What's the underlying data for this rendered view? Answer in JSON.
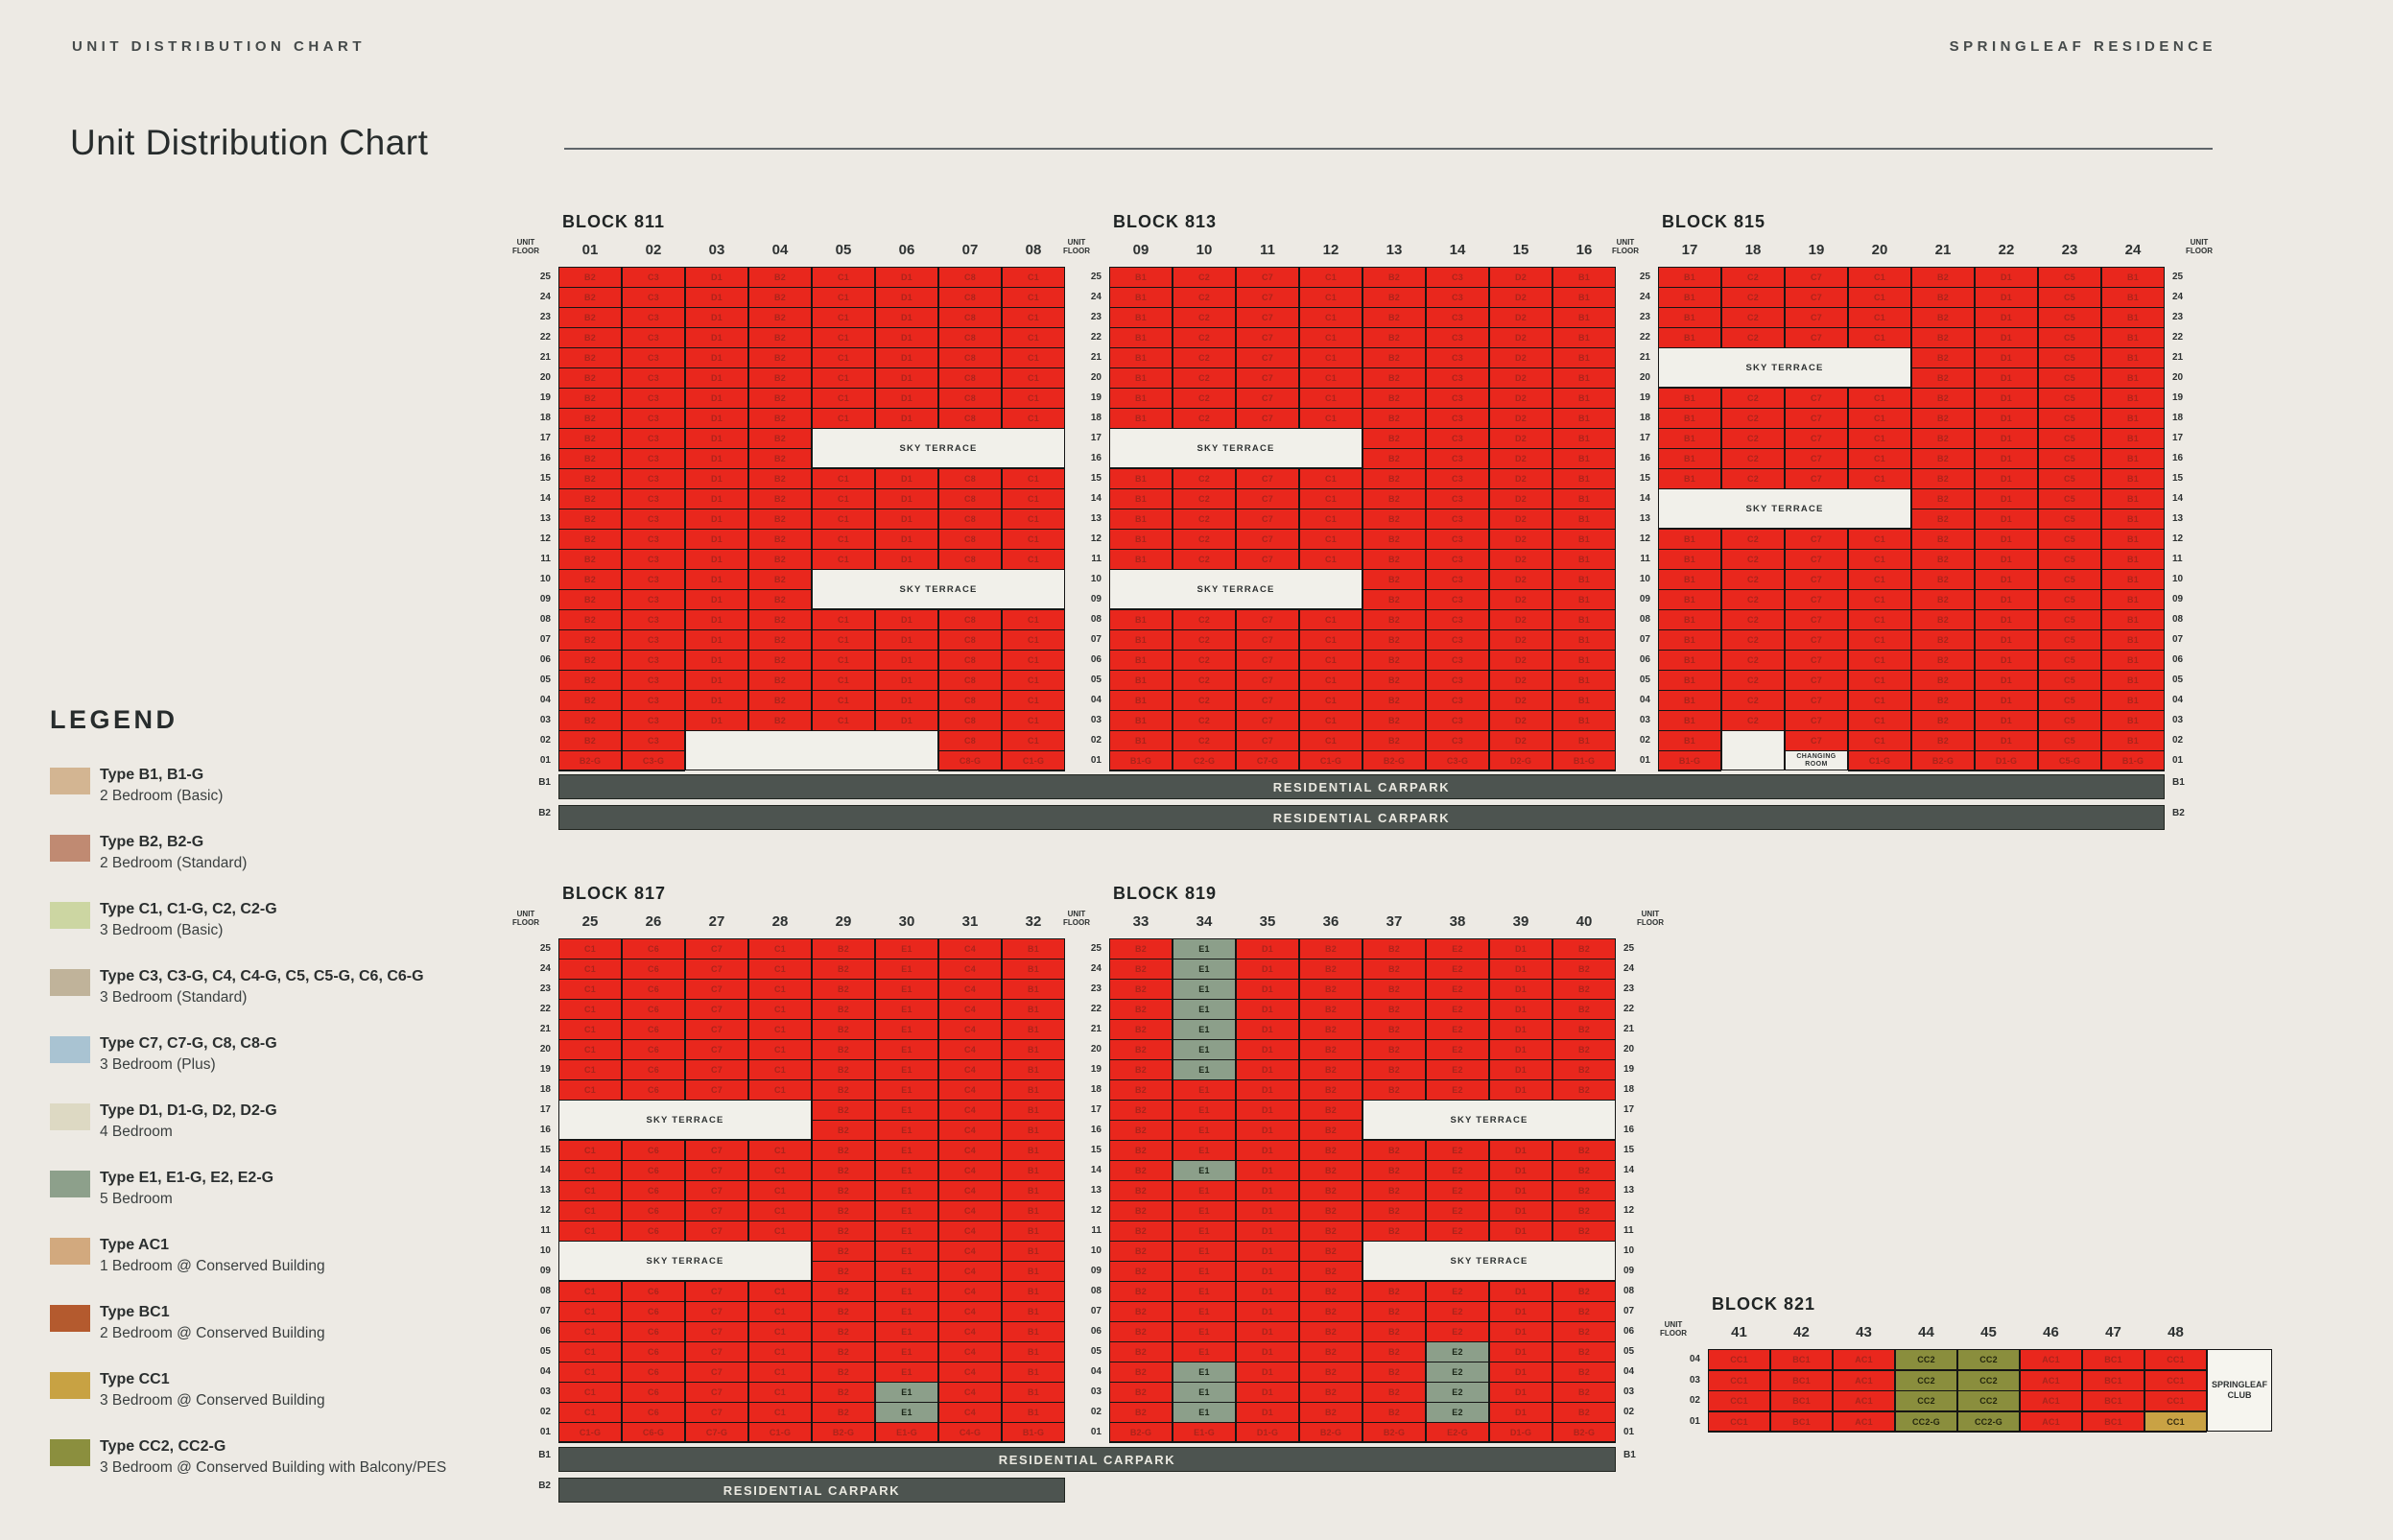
{
  "page": {
    "eyebrow": "UNIT DISTRIBUTION CHART",
    "brand": "SPRINGLEAF RESIDENCE",
    "title": "Unit Distribution Chart"
  },
  "legend": {
    "title": "LEGEND",
    "items": [
      {
        "color": "#d3b592",
        "name": "Type B1, B1-G",
        "desc": "2 Bedroom (Basic)"
      },
      {
        "color": "#c08a72",
        "name": "Type B2, B2-G",
        "desc": "2 Bedroom (Standard)"
      },
      {
        "color": "#ccd6a2",
        "name": "Type C1, C1-G, C2, C2-G",
        "desc": "3 Bedroom (Basic)"
      },
      {
        "color": "#c0b39a",
        "name": "Type C3, C3-G, C4, C4-G, C5, C5-G, C6, C6-G",
        "desc": "3 Bedroom (Standard)"
      },
      {
        "color": "#a9c3d2",
        "name": "Type C7, C7-G, C8, C8-G",
        "desc": "3 Bedroom (Plus)"
      },
      {
        "color": "#ddd9c3",
        "name": "Type D1, D1-G, D2, D2-G",
        "desc": "4 Bedroom"
      },
      {
        "color": "#8da08b",
        "name": "Type E1, E1-G, E2, E2-G",
        "desc": "5 Bedroom"
      },
      {
        "color": "#d2a97e",
        "name": "Type AC1",
        "desc": "1 Bedroom @ Conserved Building"
      },
      {
        "color": "#b45a2e",
        "name": "Type BC1",
        "desc": "2 Bedroom @ Conserved Building"
      },
      {
        "color": "#c8a243",
        "name": "Type CC1",
        "desc": "3 Bedroom @ Conserved Building"
      },
      {
        "color": "#8b8f3e",
        "name": "Type CC2, CC2-G",
        "desc": "3 Bedroom @ Conserved Building with Balcony/PES"
      }
    ]
  },
  "labels": {
    "unit_floor": [
      "UNIT",
      "FLOOR"
    ],
    "basements": [
      "B1",
      "B2"
    ],
    "carpark": "RESIDENTIAL CARPARK",
    "sky_terrace": "SKY TERRACE",
    "changing_room": [
      "CHANGING",
      "ROOM"
    ],
    "club": [
      "SPRINGLEAF",
      "CLUB"
    ]
  },
  "colors": {
    "sold": "#e9271d",
    "sold_text": "#ab241b",
    "available_5br": "#8c9f8a",
    "available_cc2": "#8a8e3d",
    "available_cc1": "#c9a244",
    "background": "#edeae4"
  },
  "floors_tower": [
    "25",
    "24",
    "23",
    "22",
    "21",
    "20",
    "19",
    "18",
    "17",
    "16",
    "15",
    "14",
    "13",
    "12",
    "11",
    "10",
    "09",
    "08",
    "07",
    "06",
    "05",
    "04",
    "03",
    "02",
    "01"
  ],
  "floors_conserved": [
    "04",
    "03",
    "02",
    "01"
  ],
  "blocks": [
    {
      "id": "811",
      "name": "BLOCK 811",
      "stacks": [
        "01",
        "02",
        "03",
        "04",
        "05",
        "06",
        "07",
        "08"
      ],
      "types": [
        "B2",
        "C3",
        "D1",
        "B2",
        "C1",
        "D1",
        "C8",
        "C1"
      ],
      "floors": "tower",
      "ground_suffix": "all",
      "sky_terraces": [
        {
          "floors": [
            "17",
            "16"
          ],
          "start": 4,
          "span": 4
        },
        {
          "floors": [
            "10",
            "09"
          ],
          "start": 4,
          "span": 4
        }
      ],
      "voids": [
        {
          "floors": [
            "02",
            "01"
          ],
          "start": 2,
          "span": 4
        }
      ],
      "available": []
    },
    {
      "id": "813",
      "name": "BLOCK 813",
      "stacks": [
        "09",
        "10",
        "11",
        "12",
        "13",
        "14",
        "15",
        "16"
      ],
      "types": [
        "B1",
        "C2",
        "C7",
        "C1",
        "B2",
        "C3",
        "D2",
        "B1"
      ],
      "floors": "tower",
      "ground_suffix": "all",
      "sky_terraces": [
        {
          "floors": [
            "17",
            "16"
          ],
          "start": 0,
          "span": 4
        },
        {
          "floors": [
            "10",
            "09"
          ],
          "start": 0,
          "span": 4
        }
      ],
      "voids": [],
      "available": []
    },
    {
      "id": "815",
      "name": "BLOCK 815",
      "stacks": [
        "17",
        "18",
        "19",
        "20",
        "21",
        "22",
        "23",
        "24"
      ],
      "types": [
        "B1",
        "C2",
        "C7",
        "C1",
        "B2",
        "D1",
        "C5",
        "B1"
      ],
      "floors": "tower",
      "ground_suffix": "all",
      "sky_terraces": [
        {
          "floors": [
            "21",
            "20"
          ],
          "start": 0,
          "span": 4
        },
        {
          "floors": [
            "14",
            "13"
          ],
          "start": 0,
          "span": 4
        }
      ],
      "voids": [
        {
          "floors": [
            "02",
            "01"
          ],
          "start": 1,
          "span": 1
        }
      ],
      "changing_room": {
        "stack": 2,
        "floor": "01"
      },
      "available": []
    },
    {
      "id": "817",
      "name": "BLOCK 817",
      "stacks": [
        "25",
        "26",
        "27",
        "28",
        "29",
        "30",
        "31",
        "32"
      ],
      "types": [
        "C1",
        "C6",
        "C7",
        "C1",
        "B2",
        "E1",
        "C4",
        "B1"
      ],
      "floors": "tower",
      "ground_suffix": "all",
      "sky_terraces": [
        {
          "floors": [
            "17",
            "16"
          ],
          "start": 0,
          "span": 4
        },
        {
          "floors": [
            "10",
            "09"
          ],
          "start": 0,
          "span": 4
        }
      ],
      "voids": [],
      "available": [
        {
          "stack": 5,
          "floors": [
            "03",
            "02"
          ],
          "kind": "green"
        }
      ]
    },
    {
      "id": "819",
      "name": "BLOCK 819",
      "stacks": [
        "33",
        "34",
        "35",
        "36",
        "37",
        "38",
        "39",
        "40"
      ],
      "types": [
        "B2",
        "E1",
        "D1",
        "B2",
        "B2",
        "E2",
        "D1",
        "B2"
      ],
      "floors": "tower",
      "ground_suffix": "all",
      "sky_terraces": [
        {
          "floors": [
            "17",
            "16"
          ],
          "start": 4,
          "span": 4
        },
        {
          "floors": [
            "10",
            "09"
          ],
          "start": 4,
          "span": 4
        }
      ],
      "voids": [],
      "available": [
        {
          "stack": 1,
          "floors": [
            "25",
            "24",
            "23",
            "22",
            "21",
            "20",
            "19",
            "14",
            "04",
            "03",
            "02"
          ],
          "kind": "green"
        },
        {
          "stack": 5,
          "floors": [
            "05",
            "04",
            "03",
            "02"
          ],
          "kind": "green"
        }
      ]
    },
    {
      "id": "821",
      "name": "BLOCK 821",
      "stacks": [
        "41",
        "42",
        "43",
        "44",
        "45",
        "46",
        "47",
        "48"
      ],
      "types": [
        "CC1",
        "BC1",
        "AC1",
        "CC2",
        "CC2",
        "AC1",
        "BC1",
        "CC1"
      ],
      "floors": "conserved",
      "ground_suffix": [
        3,
        4
      ],
      "sky_terraces": [],
      "voids": [],
      "available": [
        {
          "stack": 3,
          "floors": [
            "04",
            "03",
            "02",
            "01"
          ],
          "kind": "olive"
        },
        {
          "stack": 4,
          "floors": [
            "04",
            "03",
            "02",
            "01"
          ],
          "kind": "olive"
        },
        {
          "stack": 7,
          "floors": [
            "01"
          ],
          "kind": "gold"
        }
      ],
      "club": true
    }
  ],
  "carparks": [
    {
      "label": "RESIDENTIAL CARPARK"
    },
    {
      "label": "RESIDENTIAL CARPARK"
    },
    {
      "label": "RESIDENTIAL CARPARK"
    },
    {
      "label": "RESIDENTIAL CARPARK"
    }
  ]
}
